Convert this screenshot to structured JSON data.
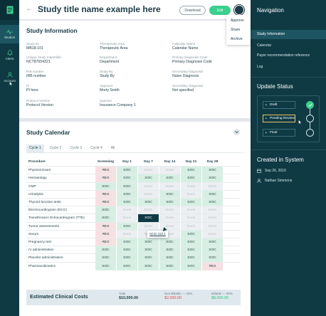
{
  "rail": {
    "items": [
      {
        "label": "Studies",
        "icon": "pulse-icon"
      },
      {
        "label": "Alerts",
        "icon": "bell-icon"
      },
      {
        "label": "Account",
        "icon": "user-icon"
      }
    ]
  },
  "header": {
    "back": "←",
    "title": "Study title name example here",
    "download_label": "Download",
    "edit_label": "Edit"
  },
  "account_menu": [
    "Approve",
    "Share",
    "Archive"
  ],
  "info": {
    "title": "Study Information",
    "fields": [
      {
        "label": "Study ID",
        "value": "MB18-101"
      },
      {
        "label": "Therapeutic Area",
        "value": "Therapeutic Area"
      },
      {
        "label": "Calendar Name",
        "value": "Calendar Name"
      },
      {
        "label": "Unique Study Indentifier",
        "value": "NCT87654321"
      },
      {
        "label": "Department",
        "value": "Department"
      },
      {
        "label": "Primary Diagnosis Code",
        "value": "Primary Diagnosis Code"
      },
      {
        "label": "IRB number",
        "value": "IRB number"
      },
      {
        "label": "Study By",
        "value": "Study By"
      },
      {
        "label": "Secondary Diagnosis",
        "value": "Naive Diagnosis"
      },
      {
        "label": "PI",
        "value": "PI here"
      },
      {
        "label": "Approver",
        "value": "Morty Smith"
      },
      {
        "label": "Secondary Diagnosis",
        "value": "Not specified"
      },
      {
        "label": "Protocol Version",
        "value": "Protocol Version"
      },
      {
        "label": "Sponsor",
        "value": "Insurance Company 1"
      }
    ]
  },
  "calendar": {
    "title": "Study Calendar",
    "tabs": [
      "Cycle 1",
      "Cycle 2",
      "Cycle 3",
      "Cycle 4",
      "All"
    ],
    "columns": [
      "Procedure",
      "Screening",
      "Day 1",
      "Day 7",
      "Day 14",
      "Day 21",
      "Day 28"
    ],
    "rows": [
      {
        "name": "Physical Exam",
        "cells": [
          "RES",
          "SOC",
          "None",
          "None",
          "SOC",
          "SOC"
        ]
      },
      {
        "name": "Hematology",
        "cells": [
          "RES",
          "SOC",
          "SOC",
          "SOC",
          "SOC",
          "SOC"
        ]
      },
      {
        "name": "CMP",
        "cells": [
          "SOC",
          "SOC",
          "None",
          "None",
          "None",
          "None"
        ]
      },
      {
        "name": "Urinalysis",
        "cells": [
          "RES",
          "SOC",
          "None",
          "SOC",
          "None",
          "SOC"
        ]
      },
      {
        "name": "Thyroid function tests",
        "cells": [
          "RES",
          "SOC",
          "SOC",
          "SOC",
          "SOC",
          "SOC"
        ]
      },
      {
        "name": "Electrocardiogram (ECG)",
        "cells": [
          "SOC",
          "None",
          "None",
          "None",
          "None",
          "None"
        ]
      },
      {
        "name": "Transthoracic Echocardiogram (TTE)",
        "cells": [
          "SOC",
          "None",
          "SOC",
          "None",
          "None",
          "None"
        ]
      },
      {
        "name": "Tumor assessments",
        "cells": [
          "RES",
          "SOC",
          "None",
          "None",
          "None",
          "None"
        ]
      },
      {
        "name": "Serum",
        "cells": [
          "RES",
          "None",
          "None",
          "None",
          "SOC",
          "None"
        ]
      },
      {
        "name": "Pregnancy test",
        "cells": [
          "RES",
          "SOC",
          "SOC",
          "SOC",
          "SOC",
          "SOC"
        ]
      },
      {
        "name": "IV administration",
        "cells": [
          "SOC",
          "SOC",
          "SOC",
          "SOC",
          "SOC",
          "SOC"
        ]
      },
      {
        "name": "Placebo administration",
        "cells": [
          "SOC",
          "SOC",
          "SOC",
          "SOC",
          "SOC",
          "SOC"
        ]
      },
      {
        "name": "Pharmacokinetics",
        "cells": [
          "SOC",
          "SOC",
          "SOC",
          "SOC",
          "SOC",
          "RES"
        ]
      }
    ],
    "tooltip": "NCD 310.1",
    "costs": {
      "title": "Estimated Clinical Costs",
      "total_label": "Total",
      "total_value": "$10,000.00",
      "nonbillable_label": "Non-Billable — 20%",
      "nonbillable_value": "$2,000.00",
      "billable_label": "Billable — 80%",
      "billable_value": "$8,000.00"
    }
  },
  "panel": {
    "nav_title": "Navigation",
    "nav": [
      "Study Information",
      "Calendar",
      "Payer recommendation reference",
      "Log"
    ],
    "status_title": "Update Status",
    "status": [
      "Draft",
      "Pending Review",
      "Final"
    ],
    "created_title": "Created in System",
    "created_date": "Sep 26, 2019",
    "created_by": "Nathan Simmons"
  },
  "colors": {
    "navy": "#0f3a44",
    "accent": "#3ccf8e",
    "soc": "#d7efe3",
    "res": "#f6e0e2"
  }
}
